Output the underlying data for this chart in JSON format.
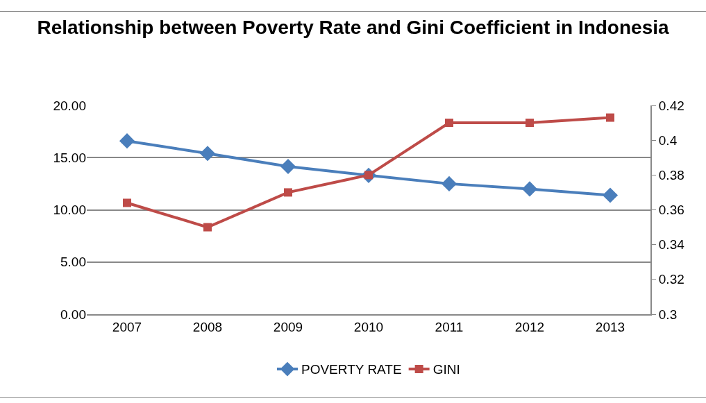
{
  "chart_data": {
    "type": "line",
    "title": "Relationship between Poverty Rate and Gini Coefficient in Indonesia",
    "categories": [
      "2007",
      "2008",
      "2009",
      "2010",
      "2011",
      "2012",
      "2013"
    ],
    "series": [
      {
        "name": "POVERTY RATE",
        "color": "#4a7ebb",
        "marker": "diamond",
        "values": [
          16.6,
          15.4,
          14.15,
          13.3,
          12.5,
          12.0,
          11.4
        ]
      },
      {
        "name": "GINI",
        "color": "#be4b48",
        "marker": "square",
        "axis": "y2",
        "values": [
          0.364,
          0.35,
          0.37,
          0.38,
          0.41,
          0.41,
          0.413
        ]
      }
    ],
    "ylim": [
      0,
      20
    ],
    "yticks": [
      {
        "value": 0,
        "label": "0.00"
      },
      {
        "value": 5,
        "label": "5.00"
      },
      {
        "value": 10,
        "label": "10.00"
      },
      {
        "value": 15,
        "label": "15.00"
      },
      {
        "value": 20,
        "label": "20.00"
      }
    ],
    "y2lim": [
      0.3,
      0.42
    ],
    "y2ticks": [
      0.3,
      0.32,
      0.34,
      0.36,
      0.38,
      0.4,
      0.42
    ],
    "grid": "y",
    "legend": "bottom",
    "line_style": "solid"
  }
}
